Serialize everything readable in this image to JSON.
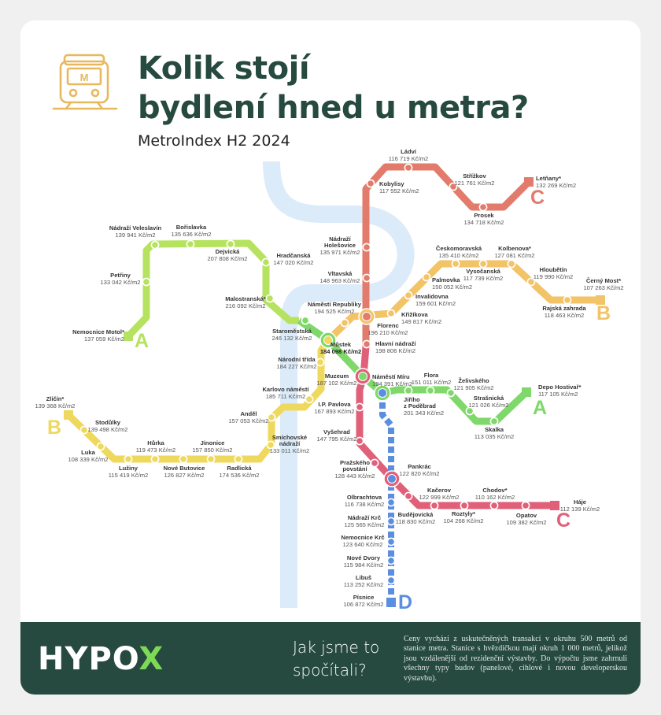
{
  "header": {
    "title_line1": "Kolik stojí",
    "title_line2": "bydlení hned u metra?",
    "subtitle": "MetroIndex H2 2024",
    "icon": "metro-train-icon",
    "icon_letter": "M"
  },
  "colors": {
    "line_a_west": "#b6e35f",
    "line_a_east": "#7fd86a",
    "line_b_west": "#efd85e",
    "line_b_east": "#f2c367",
    "line_c_north": "#e27b6c",
    "line_c_south": "#e0607a",
    "line_d": "#5b8de0",
    "river": "#dcebf9",
    "brand_dark": "#264a3f",
    "brand_accent": "#7ed957",
    "icon": "#e8b85c"
  },
  "line_letters": {
    "a": "A",
    "b": "B",
    "c": "C",
    "d": "D"
  },
  "stations": {
    "motol": {
      "name": [
        "Nemocnice Motol*"
      ],
      "price": "137 059 Kč/m2"
    },
    "petriny": {
      "name": [
        "Petřiny"
      ],
      "price": "133 042 Kč/m2"
    },
    "veleslavin": {
      "name": [
        "Nádraží Veleslavín"
      ],
      "price": "139 941 Kč/m2"
    },
    "borislavka": {
      "name": [
        "Bořislavka"
      ],
      "price": "135 636 Kč/m2"
    },
    "dejvicka": {
      "name": [
        "Dejvická"
      ],
      "price": "207 808 Kč/m2"
    },
    "hradcanska": {
      "name": [
        "Hradčanská"
      ],
      "price": "147 020 Kč/m2"
    },
    "malostranska": {
      "name": [
        "Malostranská*"
      ],
      "price": "216 092 Kč/m2"
    },
    "staromestska": {
      "name": [
        "Staroměstská"
      ],
      "price": "246 132 Kč/m2"
    },
    "mustek": {
      "name": [
        "Můstek"
      ],
      "price": "184 098 Kč/m2"
    },
    "namestimiru": {
      "name": [
        "Náměstí Míru"
      ],
      "price": "194 391 Kč/m2"
    },
    "jiriho": {
      "name": [
        "Jiřího",
        "z Poděbrad"
      ],
      "price": "201 343 Kč/m2"
    },
    "flora": {
      "name": [
        "Flora"
      ],
      "price": "151 011 Kč/m2"
    },
    "zelivskeho": {
      "name": [
        "Želivského"
      ],
      "price": "121 905 Kč/m2"
    },
    "strasnicka": {
      "name": [
        "Strašnická"
      ],
      "price": "121 026 Kč/m2"
    },
    "skalka": {
      "name": [
        "Skalka"
      ],
      "price": "113 035 Kč/m2"
    },
    "depo": {
      "name": [
        "Depo Hostivař*"
      ],
      "price": "117 105 Kč/m2"
    },
    "zlicin": {
      "name": [
        "Zličín*"
      ],
      "price": "139 368 Kč/m2"
    },
    "stodulky": {
      "name": [
        "Stodůlky"
      ],
      "price": "139 498 Kč/m2"
    },
    "luka": {
      "name": [
        "Luka"
      ],
      "price": "108 339 Kč/m2"
    },
    "luziny": {
      "name": [
        "Lužiny"
      ],
      "price": "115 419 Kč/m2"
    },
    "hurka": {
      "name": [
        "Hůrka"
      ],
      "price": "119 473 Kč/m2"
    },
    "novebutovice": {
      "name": [
        "Nové Butovice"
      ],
      "price": "126 827 Kč/m2"
    },
    "jinonice": {
      "name": [
        "Jinonice"
      ],
      "price": "157 850 Kč/m2"
    },
    "radlicka": {
      "name": [
        "Radlická"
      ],
      "price": "174 536 Kč/m2"
    },
    "smichovske": {
      "name": [
        "Smíchovské",
        "nádraží"
      ],
      "price": "133 011 Kč/m2"
    },
    "andel": {
      "name": [
        "Anděl"
      ],
      "price": "157 053 Kč/m2"
    },
    "karlovo": {
      "name": [
        "Karlovo náměstí"
      ],
      "price": "185 711 Kč/m2"
    },
    "narodni": {
      "name": [
        "Národní třída"
      ],
      "price": "184 227 Kč/m2"
    },
    "republiky": {
      "name": [
        "Náměstí Republiky"
      ],
      "price": "194 525 Kč/m2"
    },
    "krizikova": {
      "name": [
        "Křižíkova"
      ],
      "price": "149 817 Kč/m2"
    },
    "invalidovna": {
      "name": [
        "Invalidovna"
      ],
      "price": "159 601 Kč/m2"
    },
    "palmovka": {
      "name": [
        "Palmovka"
      ],
      "price": "150 052 Kč/m2"
    },
    "ceskomoravska": {
      "name": [
        "Českomoravská"
      ],
      "price": "135 410 Kč/m2"
    },
    "vysocanska": {
      "name": [
        "Vysočanská"
      ],
      "price": "117 739 Kč/m2"
    },
    "kolbenova": {
      "name": [
        "Kolbenova*"
      ],
      "price": "127 081 Kč/m2"
    },
    "hloubetin": {
      "name": [
        "Hloubětín"
      ],
      "price": "119 990 Kč/m2"
    },
    "rajska": {
      "name": [
        "Rajská zahrada"
      ],
      "price": "118 463 Kč/m2"
    },
    "cernymost": {
      "name": [
        "Černý Most*"
      ],
      "price": "107 263 Kč/m2"
    },
    "letnany": {
      "name": [
        "Letňany*"
      ],
      "price": "132 269 Kč/m2"
    },
    "prosek": {
      "name": [
        "Prosek"
      ],
      "price": "134 718 Kč/m2"
    },
    "strizkov": {
      "name": [
        "Střížkov"
      ],
      "price": "121 761 Kč/m2"
    },
    "ladvi": {
      "name": [
        "Ládví"
      ],
      "price": "116 719 Kč/m2"
    },
    "kobylisy": {
      "name": [
        "Kobylisy"
      ],
      "price": "117 552 Kč/m2"
    },
    "holesovice": {
      "name": [
        "Nádraží",
        "Holešovice"
      ],
      "price": "135 971 Kč/m2"
    },
    "vltavska": {
      "name": [
        "Vltavská"
      ],
      "price": "148 963 Kč/m2"
    },
    "florenc": {
      "name": [
        "Florenc"
      ],
      "price": "196 210 Kč/m2"
    },
    "hlavni": {
      "name": [
        "Hlavní nádraží"
      ],
      "price": "198 806 Kč/m2"
    },
    "muzeum": {
      "name": [
        "Muzeum"
      ],
      "price": "187 102 Kč/m2"
    },
    "ipp": {
      "name": [
        "I.P. Pavlova"
      ],
      "price": "167 893 Kč/m2"
    },
    "vysehrad": {
      "name": [
        "Vyšehrad"
      ],
      "price": "147 795 Kč/m2"
    },
    "prazskeho": {
      "name": [
        "Pražského",
        "povstání"
      ],
      "price": "128 443 Kč/m2"
    },
    "pankrac": {
      "name": [
        "Pankrác"
      ],
      "price": "122 820 Kč/m2"
    },
    "budejovicka": {
      "name": [
        "Budějovická"
      ],
      "price": "118 830 Kč/m2"
    },
    "kacerov": {
      "name": [
        "Kačerov"
      ],
      "price": "122 999 Kč/m2"
    },
    "roztyly": {
      "name": [
        "Roztyly*"
      ],
      "price": "104 268 Kč/m2"
    },
    "chodov": {
      "name": [
        "Chodov*"
      ],
      "price": "110 162 Kč/m2"
    },
    "opatov": {
      "name": [
        "Opatov"
      ],
      "price": "109 382 Kč/m2"
    },
    "haje": {
      "name": [
        "Háje"
      ],
      "price": "112 139 Kč/m2"
    },
    "olbrachtova": {
      "name": [
        "Olbrachtova"
      ],
      "price": "116 738 Kč/m2"
    },
    "krc": {
      "name": [
        "Nádraží Krč"
      ],
      "price": "125 565 Kč/m2"
    },
    "nemkrc": {
      "name": [
        "Nemocnice Krč"
      ],
      "price": "123 640 Kč/m2"
    },
    "novedvory": {
      "name": [
        "Nové Dvory"
      ],
      "price": "115 984 Kč/m2"
    },
    "libus": {
      "name": [
        "Libuš"
      ],
      "price": "113 252 Kč/m2"
    },
    "pisnice": {
      "name": [
        "Písnice"
      ],
      "price": "106 872 Kč/m2"
    }
  },
  "footer": {
    "logo_main": "HYPO",
    "logo_accent": "X",
    "how_title": "Jak jsme to spočítali?",
    "note": "Ceny vychází z uskutečněných transakcí v okruhu 500 metrů od stanice metra. Stanice s hvězdičkou mají okruh 1 000 metrů, jelikož jsou vzdálenější od rezidenční výstavby. Do výpočtu jsme zahrnuli všechny typy budov (panelové, cihlové i novou developerskou výstavbu)."
  }
}
